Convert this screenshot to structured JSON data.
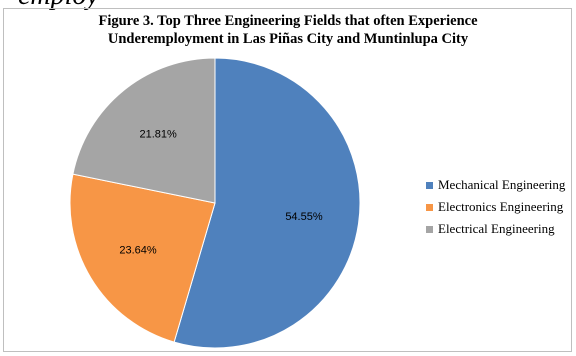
{
  "header_fragment": "employ",
  "chart_data": {
    "type": "pie",
    "title_line1": "Figure 3. Top Three Engineering Fields that often Experience",
    "title_line2": "Underemployment in Las Piñas City and Muntinlupa City",
    "legend_position": "right",
    "slices": [
      {
        "label": "Mechanical Engineering",
        "value": 54.55,
        "display": "54.55%",
        "color": "#4f81bd"
      },
      {
        "label": "Electronics Engineering",
        "value": 23.64,
        "display": "23.64%",
        "color": "#f79646"
      },
      {
        "label": "Electrical Engineering",
        "value": 21.81,
        "display": "21.81%",
        "color": "#a5a5a5"
      }
    ]
  }
}
